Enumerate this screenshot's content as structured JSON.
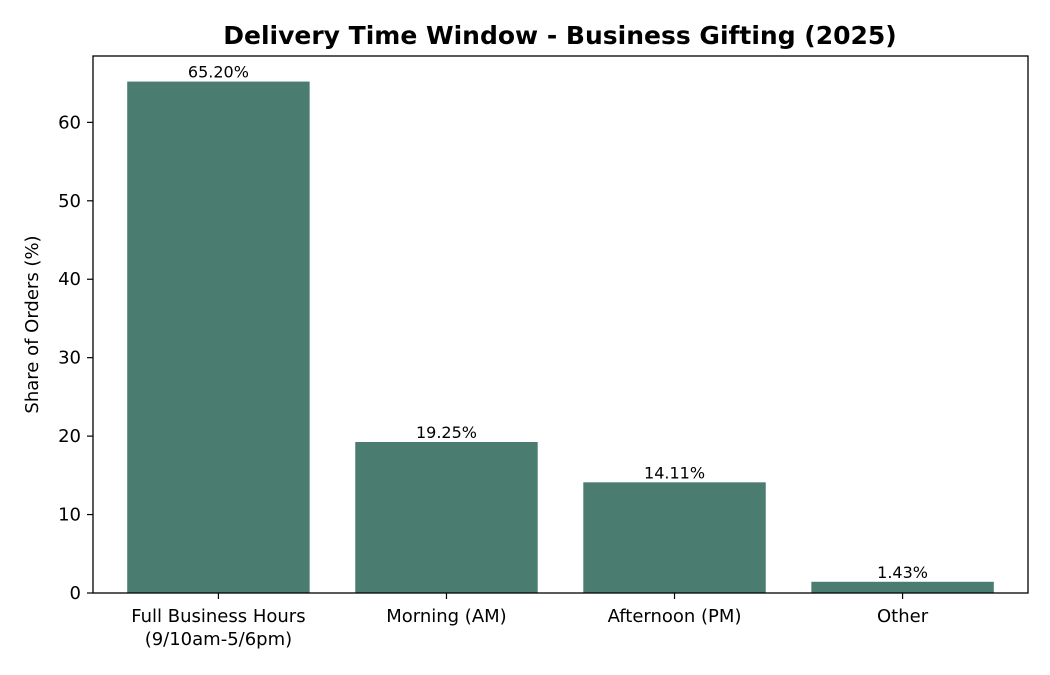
{
  "chart_data": {
    "type": "bar",
    "title": "Delivery Time Window - Business Gifting (2025)",
    "xlabel": "",
    "ylabel": "Share of Orders (%)",
    "categories": [
      [
        "Full Business Hours",
        "(9/10am-5/6pm)"
      ],
      [
        "Morning (AM)"
      ],
      [
        "Afternoon (PM)"
      ],
      [
        "Other"
      ]
    ],
    "values": [
      65.2,
      19.25,
      14.11,
      1.43
    ],
    "data_labels": [
      "65.20%",
      "19.25%",
      "14.11%",
      "1.43%"
    ],
    "ylim": [
      0,
      68.46
    ],
    "yticks": [
      0,
      10,
      20,
      30,
      40,
      50,
      60
    ],
    "bar_color": "#4a7c6f",
    "grid": false,
    "legend": "none"
  }
}
